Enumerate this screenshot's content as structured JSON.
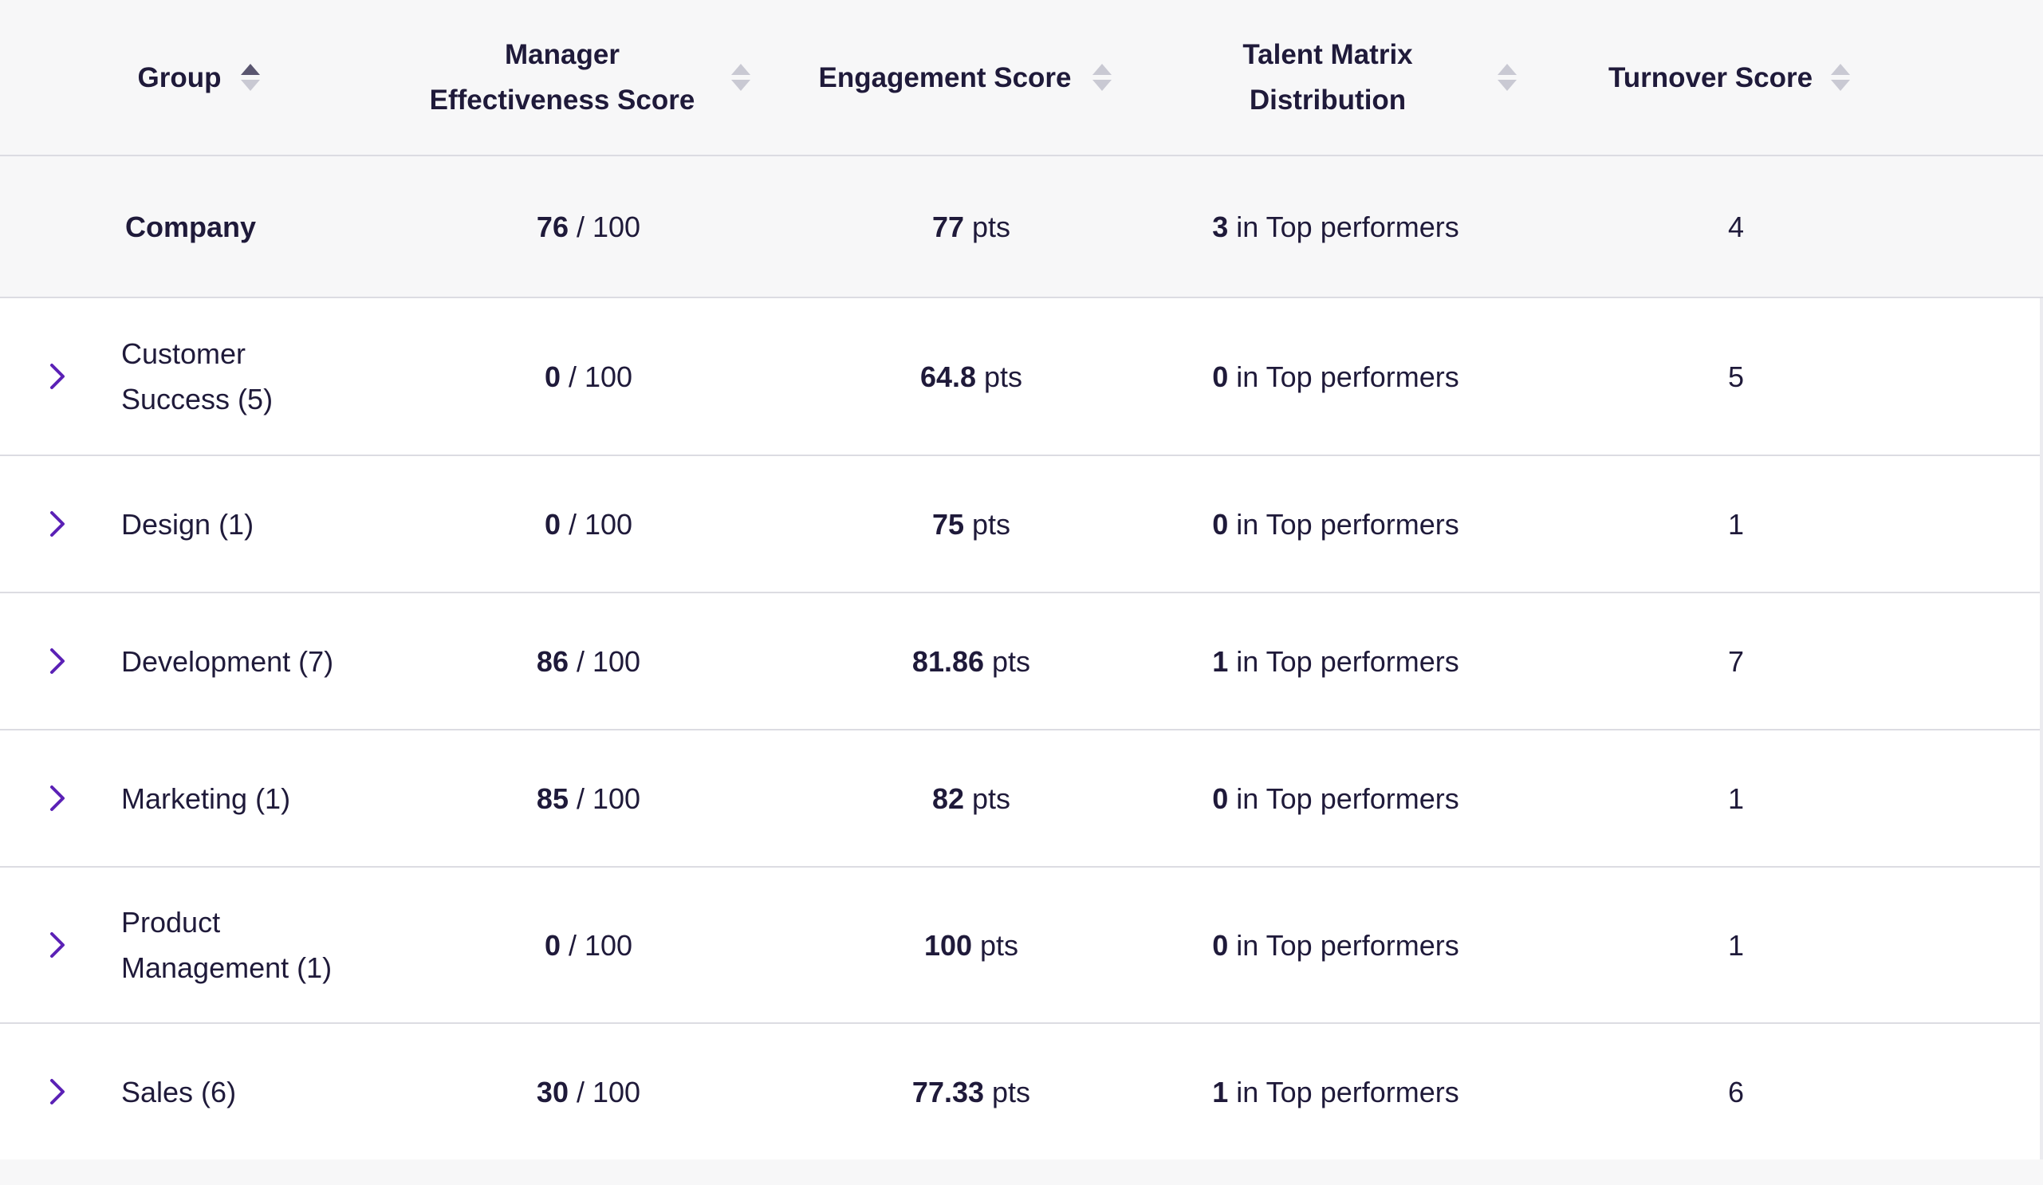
{
  "header": {
    "group": "Group",
    "manager_line1": "Manager",
    "manager_line2": "Effectiveness Score",
    "engagement": "Engagement Score",
    "talent_line1": "Talent Matrix",
    "talent_line2": "Distribution",
    "turnover": "Turnover Score"
  },
  "sort_icon": "sort-arrows-icon",
  "expand_icon": "chevron-right-icon",
  "colors": {
    "accent": "#5b21b6",
    "text": "#1f1a3a",
    "sort_inactive": "#c9c9d3",
    "sort_active": "#5a5670",
    "header_bg": "#f7f7f8",
    "border": "#dcdce2"
  },
  "company": {
    "name": "Company",
    "manager_value": "76",
    "manager_suffix": "/ 100",
    "engagement_value": "77",
    "engagement_suffix": "pts",
    "talent_value": "3",
    "talent_suffix": "in Top performers",
    "turnover": "4"
  },
  "rows": [
    {
      "name_line1": "Customer",
      "name_line2": "Success (5)",
      "manager_value": "0",
      "manager_suffix": "/ 100",
      "engagement_value": "64.8",
      "engagement_suffix": "pts",
      "talent_value": "0",
      "talent_suffix": "in Top performers",
      "turnover": "5"
    },
    {
      "name_line1": "Design (1)",
      "name_line2": "",
      "manager_value": "0",
      "manager_suffix": "/ 100",
      "engagement_value": "75",
      "engagement_suffix": "pts",
      "talent_value": "0",
      "talent_suffix": "in Top performers",
      "turnover": "1"
    },
    {
      "name_line1": "Development (7)",
      "name_line2": "",
      "manager_value": "86",
      "manager_suffix": "/ 100",
      "engagement_value": "81.86",
      "engagement_suffix": "pts",
      "talent_value": "1",
      "talent_suffix": "in Top performers",
      "turnover": "7"
    },
    {
      "name_line1": "Marketing (1)",
      "name_line2": "",
      "manager_value": "85",
      "manager_suffix": "/ 100",
      "engagement_value": "82",
      "engagement_suffix": "pts",
      "talent_value": "0",
      "talent_suffix": "in Top performers",
      "turnover": "1"
    },
    {
      "name_line1": "Product",
      "name_line2": "Management (1)",
      "manager_value": "0",
      "manager_suffix": "/ 100",
      "engagement_value": "100",
      "engagement_suffix": "pts",
      "talent_value": "0",
      "talent_suffix": "in Top performers",
      "turnover": "1"
    },
    {
      "name_line1": "Sales (6)",
      "name_line2": "",
      "manager_value": "30",
      "manager_suffix": "/ 100",
      "engagement_value": "77.33",
      "engagement_suffix": "pts",
      "talent_value": "1",
      "talent_suffix": "in Top performers",
      "turnover": "6"
    }
  ]
}
